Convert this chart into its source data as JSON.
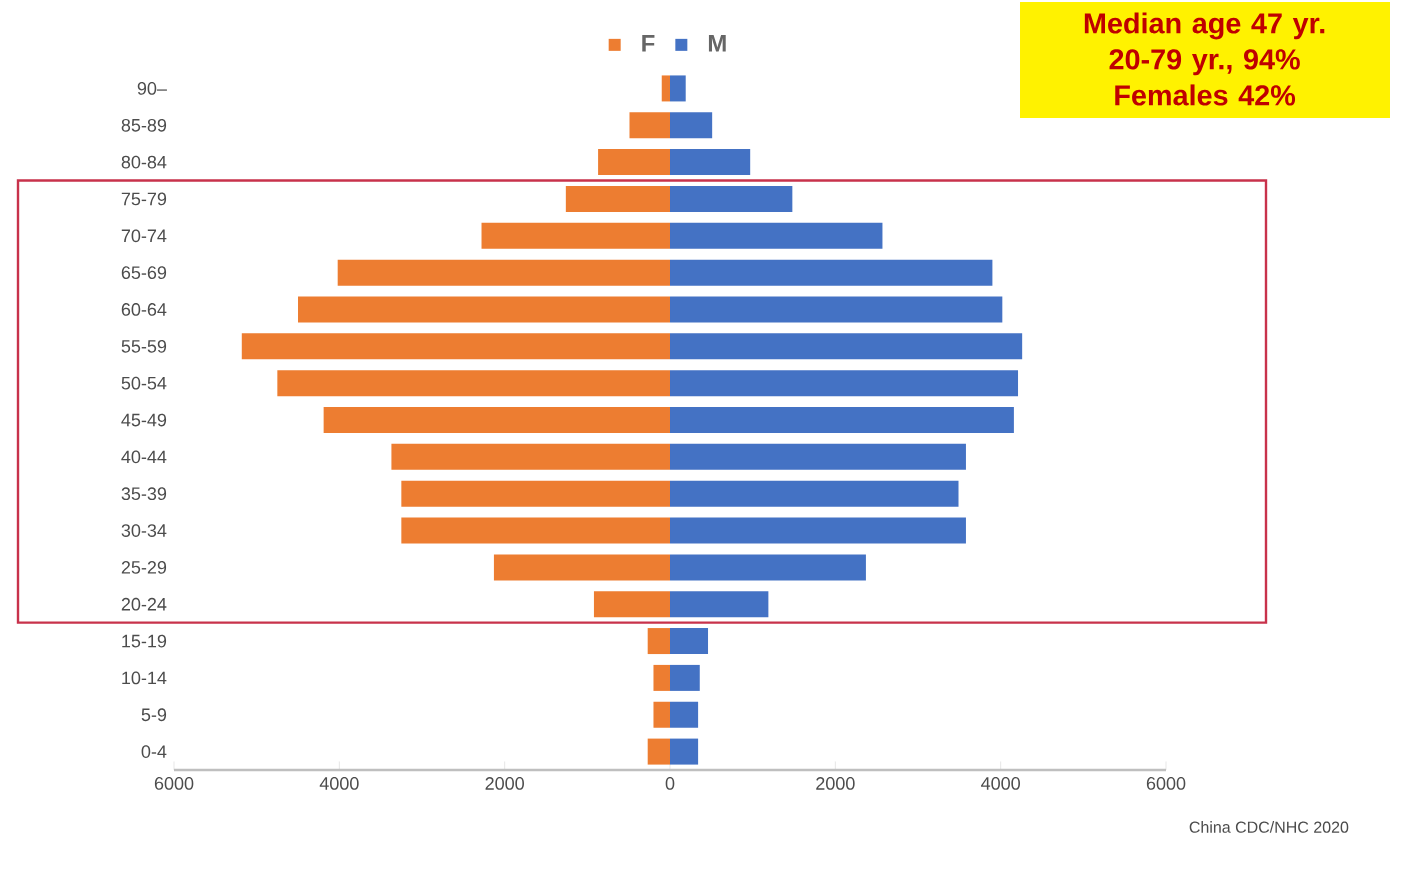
{
  "chart_data": {
    "type": "bar",
    "orientation": "horizontal",
    "categories": [
      "90–",
      "85-89",
      "80-84",
      "75-79",
      "70-74",
      "65-69",
      "60-64",
      "55-59",
      "50-54",
      "45-49",
      "40-44",
      "35-39",
      "30-34",
      "25-29",
      "20-24",
      "15-19",
      "10-14",
      "5-9",
      "0-4"
    ],
    "series": [
      {
        "name": "F",
        "color": "#ed7d31",
        "values": [
          -100,
          -490,
          -870,
          -1260,
          -2280,
          -4020,
          -4500,
          -5180,
          -4750,
          -4190,
          -3370,
          -3250,
          -3250,
          -2130,
          -920,
          -270,
          -200,
          -200,
          -270
        ]
      },
      {
        "name": "M",
        "color": "#4472c4",
        "values": [
          190,
          510,
          970,
          1480,
          2570,
          3900,
          4020,
          4260,
          4210,
          4160,
          3580,
          3490,
          3580,
          2370,
          1190,
          460,
          360,
          340,
          340
        ]
      }
    ],
    "xlim": [
      -6000,
      6000
    ],
    "xticks": [
      {
        "value": -6000,
        "label": "6000"
      },
      {
        "value": -4000,
        "label": "4000"
      },
      {
        "value": -2000,
        "label": "2000"
      },
      0,
      2000,
      4000,
      6000
    ],
    "stacked": true,
    "legend": "top",
    "grid": false,
    "annotations": [
      "Median age 47 yr.",
      "20-79 yr., 94%",
      "Females 42%",
      "China CDC/NHC  2020"
    ]
  }
}
